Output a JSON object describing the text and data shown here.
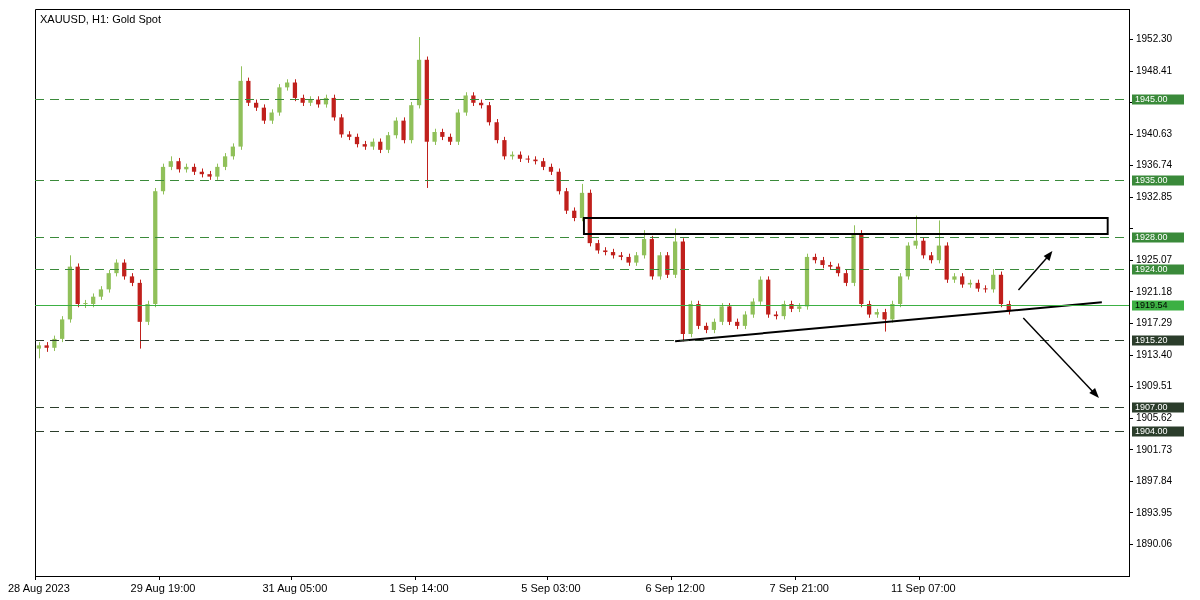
{
  "chart_data": {
    "type": "candlestick",
    "title": "XAUUSD, H1: Gold Spot",
    "categories": [
      "28 Aug 2023",
      null,
      null,
      null,
      null,
      null,
      null,
      null,
      null,
      null,
      null,
      null,
      null,
      null,
      null,
      null,
      "29 Aug 19:00",
      null,
      null,
      null,
      null,
      null,
      null,
      null,
      null,
      null,
      null,
      null,
      null,
      null,
      null,
      null,
      null,
      "31 Aug 05:00",
      null,
      null,
      null,
      null,
      null,
      null,
      null,
      null,
      null,
      null,
      null,
      null,
      null,
      null,
      null,
      "1 Sep 14:00",
      null,
      null,
      null,
      null,
      null,
      null,
      null,
      null,
      null,
      null,
      null,
      null,
      null,
      null,
      null,
      null,
      "5 Sep 03:00",
      null,
      null,
      null,
      null,
      null,
      null,
      null,
      null,
      null,
      null,
      null,
      null,
      null,
      null,
      null,
      "6 Sep 12:00",
      null,
      null,
      null,
      null,
      null,
      null,
      null,
      null,
      null,
      null,
      null,
      null,
      null,
      null,
      null,
      "7 Sep 21:00",
      null,
      null,
      null,
      null,
      null,
      null,
      null,
      null,
      null,
      null,
      null,
      null,
      null,
      null,
      null,
      "11 Sep 07:00",
      null,
      null,
      null,
      null,
      null,
      null,
      null,
      null,
      null,
      null,
      null,
      null,
      null,
      null,
      null,
      null,
      null,
      null,
      null,
      null,
      null,
      null,
      null,
      null,
      null,
      null
    ],
    "ohlc": [
      [
        1914.2,
        1915.0,
        1913.0,
        1914.6
      ],
      [
        1914.6,
        1915.0,
        1913.8,
        1914.3
      ],
      [
        1914.3,
        1915.8,
        1913.9,
        1915.4
      ],
      [
        1915.4,
        1918.2,
        1915.0,
        1917.8
      ],
      [
        1917.8,
        1925.7,
        1917.4,
        1924.3
      ],
      [
        1924.3,
        1924.7,
        1919.3,
        1919.7
      ],
      [
        1919.7,
        1920.2,
        1919.2,
        1919.7
      ],
      [
        1919.7,
        1921.0,
        1919.3,
        1920.6
      ],
      [
        1920.6,
        1921.9,
        1920.2,
        1921.5
      ],
      [
        1921.5,
        1923.9,
        1921.1,
        1923.5
      ],
      [
        1923.5,
        1925.2,
        1923.1,
        1924.8
      ],
      [
        1924.8,
        1925.2,
        1922.7,
        1923.1
      ],
      [
        1923.1,
        1923.5,
        1921.9,
        1922.3
      ],
      [
        1922.3,
        1922.7,
        1914.2,
        1917.5
      ],
      [
        1917.5,
        1920.1,
        1917.1,
        1919.7
      ],
      [
        1919.7,
        1934.0,
        1919.3,
        1933.6
      ],
      [
        1933.6,
        1937.0,
        1933.2,
        1936.6
      ],
      [
        1936.6,
        1937.9,
        1936.2,
        1937.3
      ],
      [
        1937.3,
        1937.7,
        1935.9,
        1936.3
      ],
      [
        1936.3,
        1937.0,
        1935.9,
        1936.6
      ],
      [
        1936.6,
        1937.0,
        1935.6,
        1936.0
      ],
      [
        1936.0,
        1936.4,
        1935.3,
        1935.7
      ],
      [
        1935.7,
        1936.1,
        1935.0,
        1935.4
      ],
      [
        1935.4,
        1937.0,
        1935.0,
        1936.6
      ],
      [
        1936.6,
        1938.3,
        1936.2,
        1937.9
      ],
      [
        1937.9,
        1939.5,
        1937.5,
        1939.1
      ],
      [
        1939.1,
        1949.0,
        1938.7,
        1947.2
      ],
      [
        1947.2,
        1947.6,
        1944.1,
        1944.5
      ],
      [
        1944.5,
        1944.9,
        1943.5,
        1943.9
      ],
      [
        1943.9,
        1944.3,
        1941.9,
        1942.3
      ],
      [
        1942.3,
        1943.7,
        1941.9,
        1943.3
      ],
      [
        1943.3,
        1946.8,
        1942.9,
        1946.4
      ],
      [
        1946.4,
        1947.4,
        1946.0,
        1947.0
      ],
      [
        1947.0,
        1947.4,
        1944.7,
        1945.1
      ],
      [
        1945.1,
        1945.5,
        1944.1,
        1944.5
      ],
      [
        1944.5,
        1945.3,
        1944.1,
        1944.9
      ],
      [
        1944.9,
        1945.3,
        1943.9,
        1944.3
      ],
      [
        1944.3,
        1945.5,
        1943.9,
        1945.1
      ],
      [
        1945.1,
        1945.5,
        1942.3,
        1942.7
      ],
      [
        1942.7,
        1943.1,
        1940.2,
        1940.6
      ],
      [
        1940.6,
        1941.0,
        1939.9,
        1940.3
      ],
      [
        1940.3,
        1940.7,
        1939.0,
        1939.4
      ],
      [
        1939.4,
        1939.8,
        1938.7,
        1939.1
      ],
      [
        1939.1,
        1940.1,
        1938.7,
        1939.7
      ],
      [
        1939.7,
        1940.1,
        1938.3,
        1938.7
      ],
      [
        1938.7,
        1940.9,
        1938.3,
        1940.5
      ],
      [
        1940.5,
        1942.7,
        1940.1,
        1942.3
      ],
      [
        1942.3,
        1942.7,
        1939.5,
        1939.9
      ],
      [
        1939.9,
        1944.6,
        1939.5,
        1944.2
      ],
      [
        1944.2,
        1952.6,
        1943.8,
        1949.8
      ],
      [
        1949.8,
        1950.2,
        1934.0,
        1939.7
      ],
      [
        1939.7,
        1941.3,
        1939.3,
        1940.9
      ],
      [
        1940.9,
        1941.3,
        1939.9,
        1940.3
      ],
      [
        1940.3,
        1940.7,
        1939.3,
        1939.7
      ],
      [
        1939.7,
        1943.7,
        1939.3,
        1943.3
      ],
      [
        1943.3,
        1945.8,
        1942.9,
        1945.4
      ],
      [
        1945.4,
        1945.8,
        1944.1,
        1944.5
      ],
      [
        1944.5,
        1944.9,
        1943.8,
        1944.2
      ],
      [
        1944.2,
        1944.6,
        1941.7,
        1942.1
      ],
      [
        1942.1,
        1942.5,
        1939.5,
        1939.9
      ],
      [
        1939.9,
        1940.3,
        1937.5,
        1937.9
      ],
      [
        1937.9,
        1938.5,
        1937.5,
        1938.1
      ],
      [
        1938.1,
        1938.5,
        1937.2,
        1937.6
      ],
      [
        1937.6,
        1938.0,
        1937.1,
        1937.5
      ],
      [
        1937.5,
        1937.9,
        1936.9,
        1937.3
      ],
      [
        1937.3,
        1937.7,
        1936.2,
        1936.6
      ],
      [
        1936.6,
        1937.0,
        1935.6,
        1936.0
      ],
      [
        1936.0,
        1936.4,
        1933.2,
        1933.6
      ],
      [
        1933.6,
        1934.0,
        1930.8,
        1931.2
      ],
      [
        1931.2,
        1931.6,
        1929.9,
        1930.3
      ],
      [
        1930.3,
        1934.5,
        1929.9,
        1933.4
      ],
      [
        1933.4,
        1933.8,
        1926.8,
        1927.2
      ],
      [
        1927.2,
        1927.6,
        1925.9,
        1926.3
      ],
      [
        1926.3,
        1926.7,
        1925.7,
        1926.1
      ],
      [
        1926.1,
        1926.5,
        1925.3,
        1925.7
      ],
      [
        1925.7,
        1926.1,
        1925.1,
        1925.5
      ],
      [
        1925.5,
        1925.9,
        1924.4,
        1924.8
      ],
      [
        1924.8,
        1926.1,
        1924.4,
        1925.7
      ],
      [
        1925.7,
        1928.8,
        1925.3,
        1927.7
      ],
      [
        1927.7,
        1928.1,
        1922.7,
        1923.1
      ],
      [
        1923.1,
        1926.1,
        1922.7,
        1925.7
      ],
      [
        1925.7,
        1926.1,
        1922.9,
        1923.3
      ],
      [
        1923.3,
        1929.0,
        1922.9,
        1927.4
      ],
      [
        1927.4,
        1927.8,
        1915.1,
        1916.0
      ],
      [
        1916.0,
        1920.1,
        1915.6,
        1919.7
      ],
      [
        1919.7,
        1920.1,
        1916.6,
        1917.0
      ],
      [
        1917.0,
        1917.4,
        1916.1,
        1916.5
      ],
      [
        1916.5,
        1917.9,
        1916.1,
        1917.5
      ],
      [
        1917.5,
        1919.8,
        1917.1,
        1919.4
      ],
      [
        1919.4,
        1919.8,
        1917.1,
        1917.5
      ],
      [
        1917.5,
        1917.9,
        1916.6,
        1917.0
      ],
      [
        1917.0,
        1918.8,
        1916.6,
        1918.4
      ],
      [
        1918.4,
        1920.4,
        1918.0,
        1920.0
      ],
      [
        1920.0,
        1923.1,
        1919.6,
        1922.7
      ],
      [
        1922.7,
        1923.1,
        1918.0,
        1918.4
      ],
      [
        1918.4,
        1918.8,
        1917.8,
        1918.2
      ],
      [
        1918.2,
        1920.1,
        1917.8,
        1919.7
      ],
      [
        1919.7,
        1920.1,
        1918.7,
        1919.1
      ],
      [
        1919.1,
        1919.8,
        1918.7,
        1919.4
      ],
      [
        1919.4,
        1925.9,
        1919.0,
        1925.5
      ],
      [
        1925.5,
        1925.9,
        1924.7,
        1925.1
      ],
      [
        1925.1,
        1925.5,
        1924.1,
        1924.5
      ],
      [
        1924.5,
        1924.9,
        1923.9,
        1924.3
      ],
      [
        1924.3,
        1924.7,
        1923.1,
        1923.5
      ],
      [
        1923.5,
        1923.9,
        1921.9,
        1922.3
      ],
      [
        1922.3,
        1929.4,
        1921.9,
        1928.4
      ],
      [
        1928.4,
        1928.8,
        1919.3,
        1919.7
      ],
      [
        1919.7,
        1920.1,
        1918.0,
        1918.4
      ],
      [
        1918.4,
        1919.1,
        1918.0,
        1918.7
      ],
      [
        1918.7,
        1919.1,
        1916.3,
        1917.8
      ],
      [
        1917.8,
        1920.1,
        1917.4,
        1919.7
      ],
      [
        1919.7,
        1923.5,
        1919.3,
        1923.1
      ],
      [
        1923.1,
        1927.3,
        1922.7,
        1926.9
      ],
      [
        1926.9,
        1930.6,
        1926.5,
        1927.5
      ],
      [
        1927.5,
        1927.9,
        1925.3,
        1925.7
      ],
      [
        1925.7,
        1926.1,
        1924.7,
        1925.1
      ],
      [
        1925.1,
        1930.0,
        1924.7,
        1926.9
      ],
      [
        1926.9,
        1927.3,
        1922.3,
        1922.7
      ],
      [
        1922.7,
        1923.5,
        1922.3,
        1923.1
      ],
      [
        1923.1,
        1923.5,
        1921.7,
        1922.1
      ],
      [
        1922.1,
        1922.7,
        1921.7,
        1922.3
      ],
      [
        1922.3,
        1922.7,
        1921.2,
        1921.6
      ],
      [
        1921.6,
        1922.0,
        1921.1,
        1921.5
      ],
      [
        1921.5,
        1924.0,
        1921.1,
        1923.3
      ],
      [
        1923.3,
        1923.7,
        1919.3,
        1919.7
      ],
      [
        1919.7,
        1920.1,
        1918.4,
        1918.8
      ],
      null,
      null,
      null,
      null,
      null,
      null,
      null,
      null,
      null,
      null,
      null,
      null,
      null,
      null,
      null
    ],
    "colors": [
      "#90c05a",
      "#c0201c",
      "#90c05a",
      "#90c05a",
      "#90c05a",
      "#c0201c",
      "#90c05a",
      "#90c05a",
      "#90c05a",
      "#90c05a",
      "#90c05a",
      "#c0201c",
      "#c0201c",
      "#c0201c",
      "#90c05a",
      "#90c05a",
      "#90c05a",
      "#90c05a",
      "#c0201c",
      "#90c05a",
      "#c0201c",
      "#c0201c",
      "#c0201c",
      "#90c05a",
      "#90c05a",
      "#90c05a",
      "#90c05a",
      "#c0201c",
      "#c0201c",
      "#c0201c",
      "#90c05a",
      "#90c05a",
      "#90c05a",
      "#c0201c",
      "#c0201c",
      "#90c05a",
      "#c0201c",
      "#90c05a",
      "#c0201c",
      "#c0201c",
      "#c0201c",
      "#c0201c",
      "#c0201c",
      "#90c05a",
      "#c0201c",
      "#90c05a",
      "#90c05a",
      "#c0201c",
      "#90c05a",
      "#90c05a",
      "#c0201c",
      "#90c05a",
      "#c0201c",
      "#c0201c",
      "#90c05a",
      "#90c05a",
      "#c0201c",
      "#c0201c",
      "#c0201c",
      "#c0201c",
      "#c0201c",
      "#90c05a",
      "#c0201c",
      "#c0201c",
      "#c0201c",
      "#c0201c",
      "#c0201c",
      "#c0201c",
      "#c0201c",
      "#c0201c",
      "#90c05a",
      "#c0201c",
      "#c0201c",
      "#c0201c",
      "#c0201c",
      "#c0201c",
      "#c0201c",
      "#90c05a",
      "#90c05a",
      "#c0201c",
      "#90c05a",
      "#c0201c",
      "#90c05a",
      "#c0201c",
      "#90c05a",
      "#c0201c",
      "#c0201c",
      "#90c05a",
      "#90c05a",
      "#c0201c",
      "#c0201c",
      "#90c05a",
      "#90c05a",
      "#90c05a",
      "#c0201c",
      "#c0201c",
      "#90c05a",
      "#c0201c",
      "#90c05a",
      "#90c05a",
      "#c0201c",
      "#c0201c",
      "#c0201c",
      "#c0201c",
      "#c0201c",
      "#90c05a",
      "#c0201c",
      "#c0201c",
      "#90c05a",
      "#c0201c",
      "#90c05a",
      "#90c05a",
      "#90c05a",
      "#90c05a",
      "#c0201c",
      "#c0201c",
      "#90c05a",
      "#c0201c",
      "#90c05a",
      "#c0201c",
      "#90c05a",
      "#c0201c",
      "#c0201c",
      "#90c05a",
      "#c0201c",
      "#c0201c",
      null,
      null,
      null,
      null,
      null,
      null,
      null,
      null,
      null,
      null,
      null,
      null,
      null,
      null,
      null
    ],
    "series": [
      {
        "type": "line",
        "color": "#000000",
        "values": [
          null,
          null,
          null,
          null,
          null,
          null,
          null,
          null,
          null,
          null,
          null,
          null,
          null,
          null,
          null,
          null,
          null,
          null,
          null,
          null,
          null,
          null,
          null,
          null,
          null,
          null,
          null,
          null,
          null,
          null,
          null,
          null,
          null,
          null,
          null,
          null,
          null,
          null,
          null,
          null,
          null,
          null,
          null,
          null,
          null,
          null,
          null,
          null,
          null,
          null,
          null,
          null,
          null,
          null,
          null,
          null,
          null,
          null,
          null,
          null,
          null,
          null,
          null,
          null,
          null,
          null,
          null,
          null,
          null,
          null,
          null,
          null,
          null,
          null,
          null,
          null,
          null,
          null,
          null,
          null,
          null,
          null,
          1915.1,
          null,
          null,
          null,
          null,
          null,
          null,
          null,
          null,
          null,
          null,
          null,
          null,
          null,
          null,
          null,
          null,
          null,
          null,
          null,
          null,
          null,
          null,
          null,
          null,
          null,
          null,
          null,
          null,
          null,
          null,
          null,
          null,
          null,
          null,
          null,
          null,
          null,
          null,
          null,
          null,
          null,
          null,
          null,
          null,
          null,
          null,
          null,
          null,
          null,
          null,
          null,
          null,
          null,
          null,
          1919.9,
          null,
          null,
          null
        ]
      }
    ],
    "ylim": [
      1886.17,
      1956.06
    ],
    "yticks": [
      {
        "value": 1890.06,
        "label": "1890.06"
      },
      {
        "value": 1893.95,
        "label": "1893.95"
      },
      {
        "value": 1897.84,
        "label": "1897.84"
      },
      {
        "value": 1901.73,
        "label": "1901.73"
      },
      {
        "value": 1905.62,
        "label": "1905.62"
      },
      {
        "value": 1909.51,
        "label": "1909.51"
      },
      {
        "value": 1913.4,
        "label": "1913.40"
      },
      {
        "value": 1917.29,
        "label": "1917.29"
      },
      {
        "value": 1921.18,
        "label": "1921.18"
      },
      {
        "value": 1925.07,
        "label": "1925.07"
      },
      {
        "value": 1928.96,
        "label": null
      },
      {
        "value": 1932.85,
        "label": "1932.85"
      },
      {
        "value": 1936.74,
        "label": "1936.74"
      },
      {
        "value": 1940.63,
        "label": "1940.63"
      },
      {
        "value": 1944.52,
        "label": null
      },
      {
        "value": 1948.41,
        "label": "1948.41"
      },
      {
        "value": 1952.3,
        "label": "1952.30"
      }
    ],
    "ref_lines": [
      {
        "axis": "y",
        "value": 1945,
        "label": "1945.00",
        "color": "#3a8a3a",
        "line_style": "dashed"
      },
      {
        "axis": "y",
        "value": 1935,
        "label": "1935.00",
        "color": "#3a8a3a",
        "line_style": "dashed"
      },
      {
        "axis": "y",
        "value": 1928,
        "label": "1928.00",
        "color": "#3a8a3a",
        "line_style": "dashed"
      },
      {
        "axis": "y",
        "value": 1924,
        "label": "1924.00",
        "color": "#3a8a3a",
        "line_style": "dashed"
      },
      {
        "axis": "y",
        "value": 1919.54,
        "label": "1919.54",
        "color": "#3cb043",
        "line_style": "solid"
      },
      {
        "axis": "y",
        "value": 1915.2,
        "label": "1915.20",
        "color": "#2b3d2b",
        "line_style": "dashed"
      },
      {
        "axis": "y",
        "value": 1907,
        "label": "1907.00",
        "color": "#2b3d2b",
        "line_style": "dashed"
      },
      {
        "axis": "y",
        "value": 1904,
        "label": "1904.00",
        "color": "#2b3d2b",
        "line_style": "dashed"
      }
    ],
    "grid": false,
    "legend": false
  }
}
